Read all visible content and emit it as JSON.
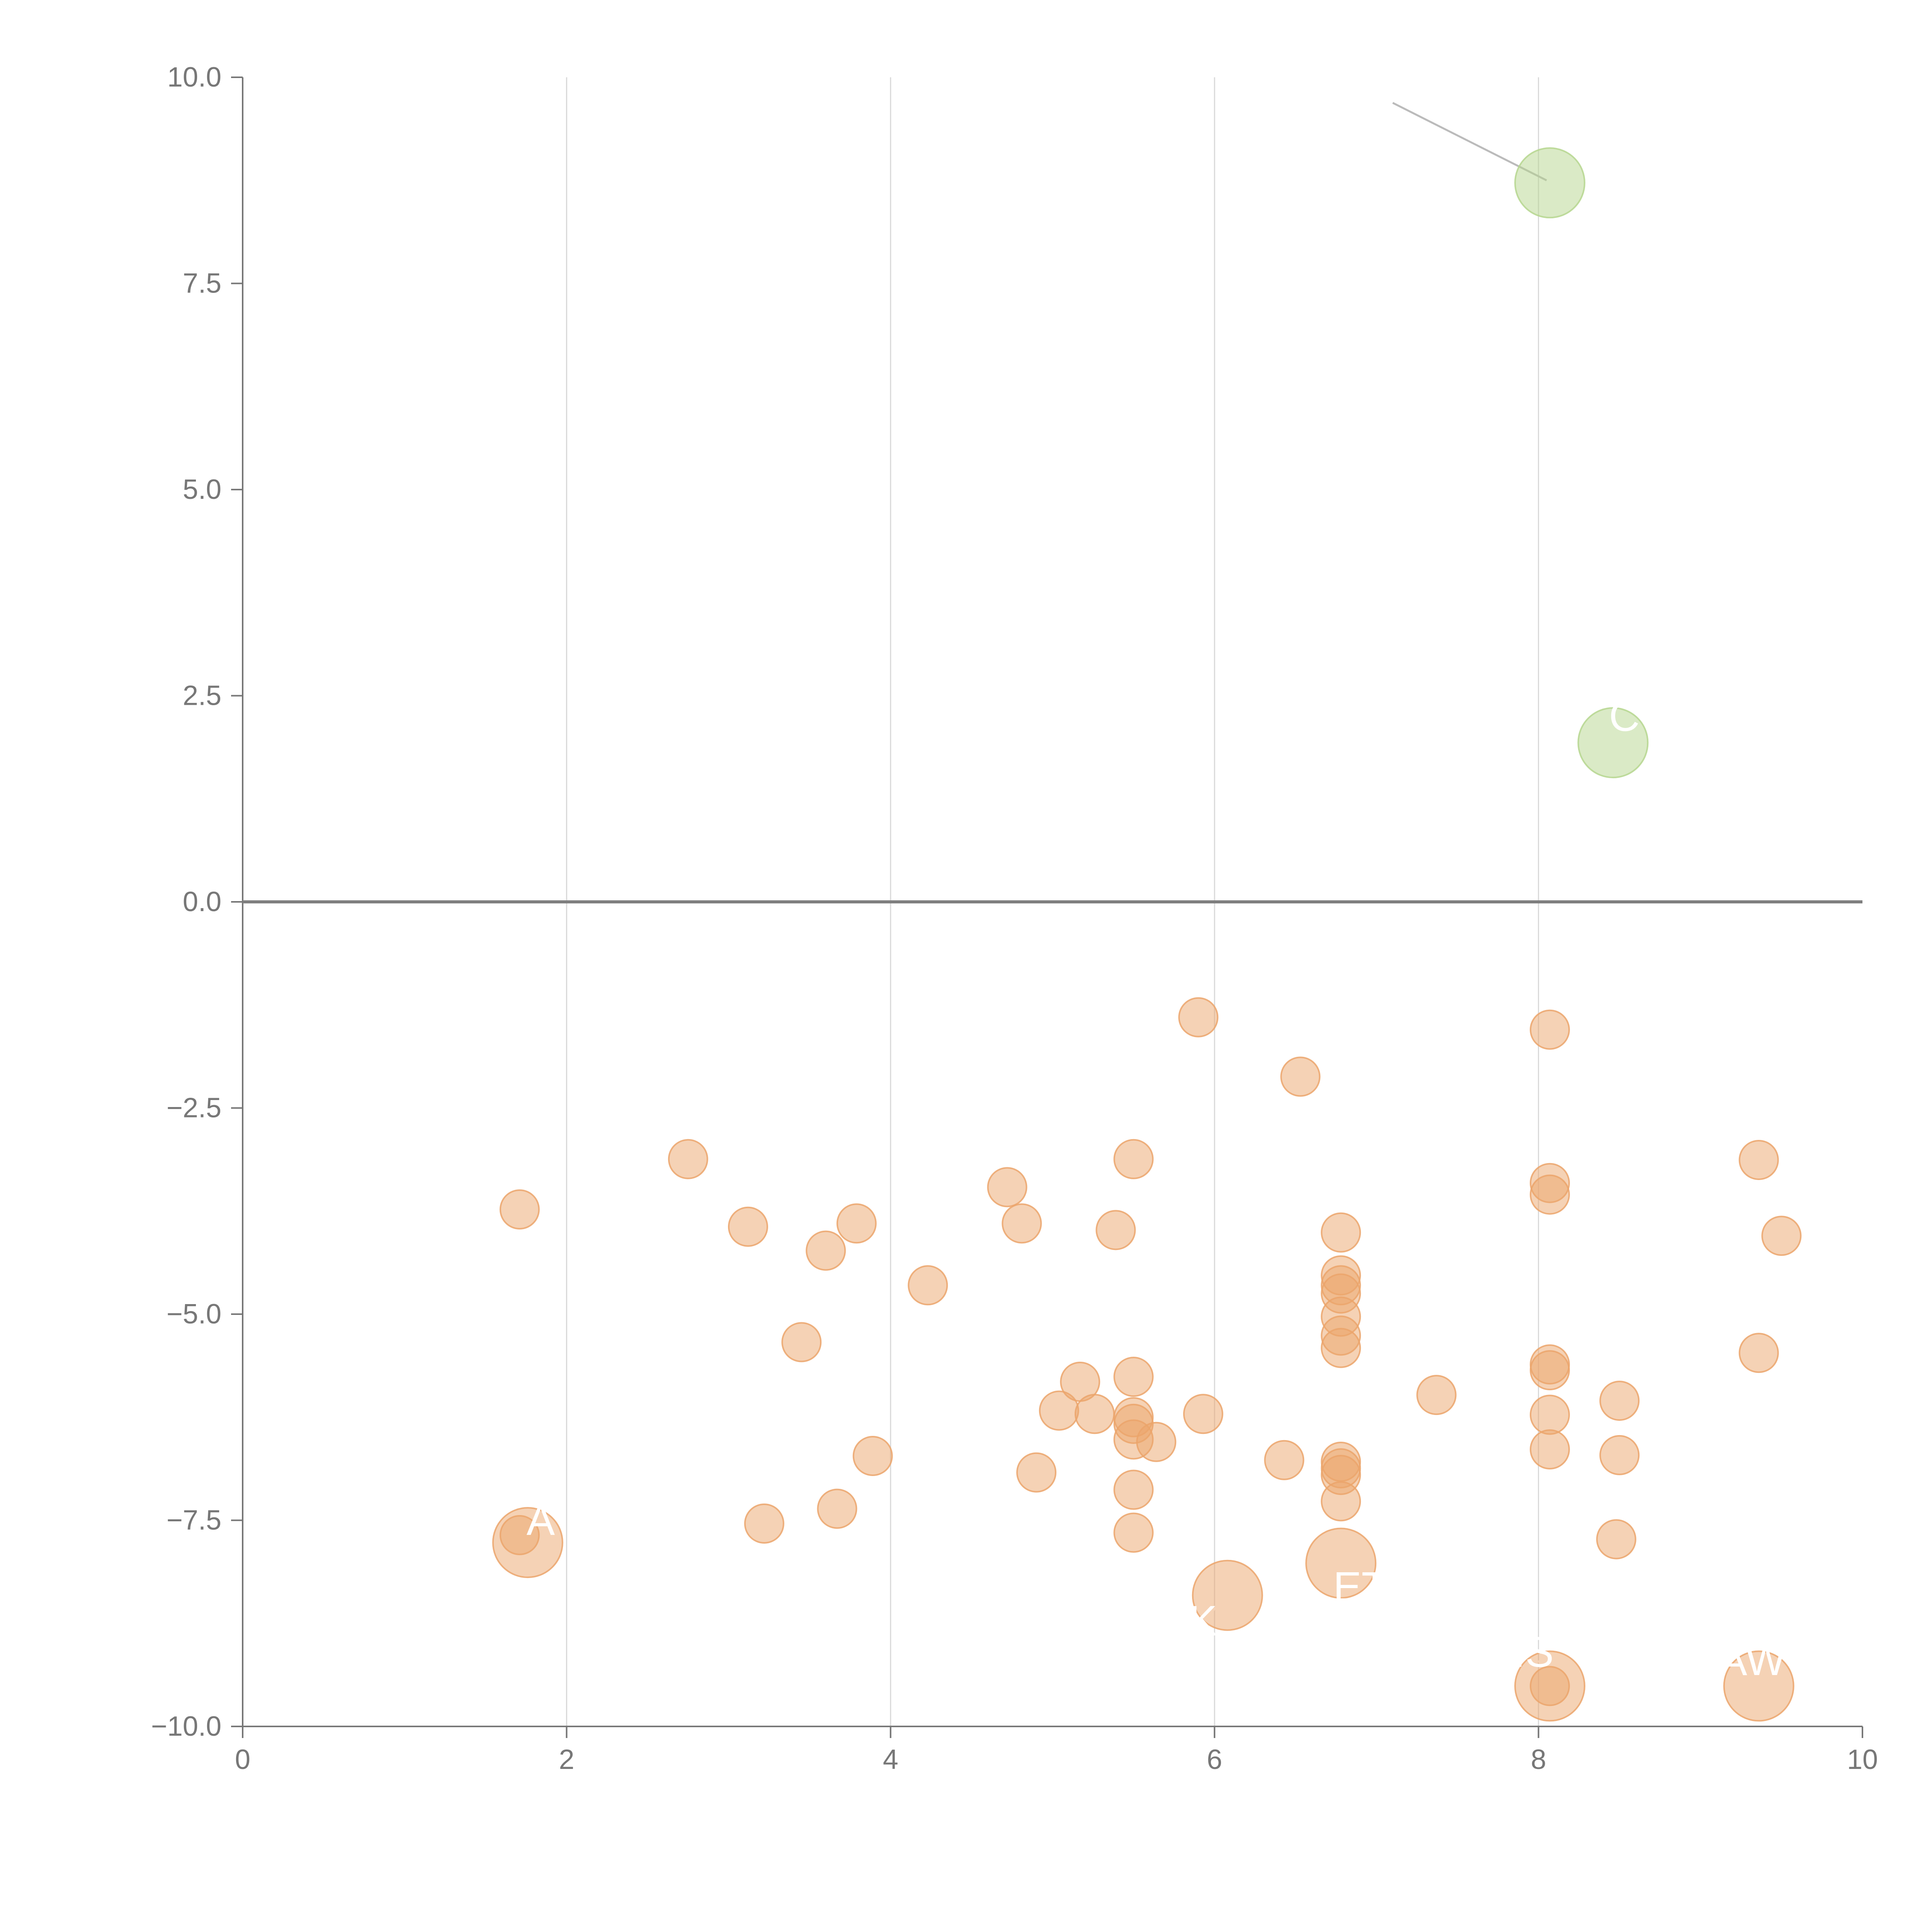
{
  "chart_data": {
    "type": "scatter",
    "title": "",
    "xlabel": "",
    "ylabel": "",
    "xlim": [
      0,
      10
    ],
    "ylim": [
      -10,
      10
    ],
    "xticks": [
      "0",
      "2",
      "4",
      "6",
      "8",
      "10"
    ],
    "yticks": [
      "10.0",
      "7.5",
      "5.0",
      "2.5",
      "0.0",
      "−2.5",
      "−5.0",
      "−7.5",
      "−10.0"
    ],
    "xtick_values": [
      0,
      2,
      4,
      6,
      8,
      10
    ],
    "ytick_values": [
      10,
      7.5,
      5,
      2.5,
      0,
      -2.5,
      -5,
      -7.5,
      -10
    ],
    "vertical_gridlines": [
      2,
      4,
      6,
      8
    ],
    "reference_line_y": 0,
    "colors": {
      "positive": "#b5d68e",
      "negative": "#eba56b",
      "axis": "#777777",
      "grid": "#d9d9d9",
      "zero_line": "#7f7f7f"
    },
    "series": [
      {
        "name": "positive",
        "points": [
          {
            "x": 8.07,
            "y": 8.72,
            "size": "large"
          },
          {
            "x": 8.46,
            "y": 1.93,
            "size": "large"
          }
        ]
      },
      {
        "name": "negative",
        "points": [
          {
            "x": 1.71,
            "y": -3.73
          },
          {
            "x": 1.71,
            "y": -7.68
          },
          {
            "x": 2.75,
            "y": -3.12
          },
          {
            "x": 3.12,
            "y": -3.94
          },
          {
            "x": 3.22,
            "y": -7.54
          },
          {
            "x": 3.45,
            "y": -5.34
          },
          {
            "x": 3.6,
            "y": -4.23
          },
          {
            "x": 3.67,
            "y": -7.36
          },
          {
            "x": 3.79,
            "y": -3.9
          },
          {
            "x": 3.89,
            "y": -6.72
          },
          {
            "x": 4.23,
            "y": -4.65
          },
          {
            "x": 4.72,
            "y": -3.46
          },
          {
            "x": 4.81,
            "y": -3.9
          },
          {
            "x": 4.9,
            "y": -6.92
          },
          {
            "x": 5.04,
            "y": -6.17
          },
          {
            "x": 5.17,
            "y": -5.82
          },
          {
            "x": 5.26,
            "y": -6.21
          },
          {
            "x": 5.39,
            "y": -3.98
          },
          {
            "x": 5.5,
            "y": -3.12
          },
          {
            "x": 5.5,
            "y": -5.76
          },
          {
            "x": 5.5,
            "y": -6.25
          },
          {
            "x": 5.5,
            "y": -6.33
          },
          {
            "x": 5.5,
            "y": -6.52
          },
          {
            "x": 5.5,
            "y": -7.13
          },
          {
            "x": 5.5,
            "y": -7.65
          },
          {
            "x": 5.64,
            "y": -6.55
          },
          {
            "x": 5.9,
            "y": -1.4
          },
          {
            "x": 5.93,
            "y": -6.21
          },
          {
            "x": 6.43,
            "y": -6.77
          },
          {
            "x": 6.53,
            "y": -2.12
          },
          {
            "x": 6.78,
            "y": -4.01
          },
          {
            "x": 6.78,
            "y": -4.53
          },
          {
            "x": 6.78,
            "y": -4.65
          },
          {
            "x": 6.78,
            "y": -4.75
          },
          {
            "x": 6.78,
            "y": -5.03
          },
          {
            "x": 6.78,
            "y": -5.26
          },
          {
            "x": 6.78,
            "y": -5.41
          },
          {
            "x": 6.78,
            "y": -6.79
          },
          {
            "x": 6.78,
            "y": -6.87
          },
          {
            "x": 6.78,
            "y": -6.95
          },
          {
            "x": 6.78,
            "y": -7.27
          },
          {
            "x": 7.37,
            "y": -5.98
          },
          {
            "x": 8.07,
            "y": -1.55
          },
          {
            "x": 8.07,
            "y": -3.41
          },
          {
            "x": 8.07,
            "y": -3.55
          },
          {
            "x": 8.07,
            "y": -5.61
          },
          {
            "x": 8.07,
            "y": -5.68
          },
          {
            "x": 8.07,
            "y": -6.22
          },
          {
            "x": 8.07,
            "y": -6.64
          },
          {
            "x": 8.07,
            "y": -9.51
          },
          {
            "x": 8.48,
            "y": -7.73
          },
          {
            "x": 8.5,
            "y": -6.05
          },
          {
            "x": 8.5,
            "y": -6.71
          },
          {
            "x": 9.36,
            "y": -3.13
          },
          {
            "x": 9.36,
            "y": -5.47
          },
          {
            "x": 9.5,
            "y": -4.05
          },
          {
            "x": 1.76,
            "y": -7.77,
            "size": "large"
          },
          {
            "x": 6.08,
            "y": -8.41,
            "size": "large"
          },
          {
            "x": 6.78,
            "y": -8.02,
            "size": "large"
          },
          {
            "x": 8.07,
            "y": -9.51,
            "size": "large"
          },
          {
            "x": 9.36,
            "y": -9.51,
            "size": "large"
          }
        ]
      }
    ],
    "annotations": [
      {
        "text": "A",
        "x": 1.84,
        "y": -7.5
      },
      {
        "text": "K",
        "x": 5.93,
        "y": -8.72
      },
      {
        "text": "ET",
        "x": 6.9,
        "y": -8.31
      },
      {
        "text": "IS",
        "x": 7.97,
        "y": -9.1
      },
      {
        "text": "AW",
        "x": 9.32,
        "y": -9.2
      },
      {
        "text": "C",
        "x": 8.53,
        "y": 2.25
      }
    ],
    "leader_lines": [
      {
        "x1": 7.1,
        "y1": 9.69,
        "x2": 8.05,
        "y2": 8.75,
        "color": "#bbbbbb"
      },
      {
        "x1": 8.48,
        "y1": 1.98,
        "x2": 8.6,
        "y2": 2.25,
        "color": "#ffffff"
      },
      {
        "x1": 1.82,
        "y1": -7.8,
        "x2": 1.92,
        "y2": -7.6,
        "color": "#ffffff"
      },
      {
        "x1": 6.05,
        "y1": -8.45,
        "x2": 5.95,
        "y2": -8.7,
        "color": "#ffffff"
      },
      {
        "x1": 8.07,
        "y1": -9.45,
        "x2": 8.0,
        "y2": -9.2,
        "color": "#ffffff"
      },
      {
        "x1": 9.36,
        "y1": -9.45,
        "x2": 9.3,
        "y2": -9.2,
        "color": "#ffffff"
      }
    ]
  }
}
